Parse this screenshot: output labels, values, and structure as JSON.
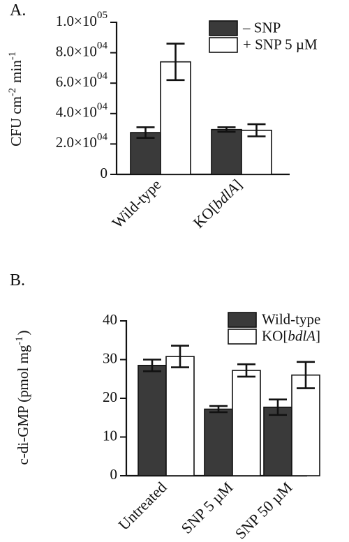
{
  "chart_data": [
    {
      "type": "bar",
      "panel_label": "A.",
      "ylabel": "CFU cm⁻² min⁻¹",
      "ylim": [
        0,
        100000
      ],
      "yticks": [
        {
          "value": 0,
          "label": "0"
        },
        {
          "value": 20000,
          "label": "2.0×10^04"
        },
        {
          "value": 40000,
          "label": "4.0×10^04"
        },
        {
          "value": 60000,
          "label": "6.0×10^04"
        },
        {
          "value": 80000,
          "label": "8.0×10^04"
        },
        {
          "value": 100000,
          "label": "1.0×10^05"
        }
      ],
      "categories": [
        "Wild-type",
        "KO[bdlA]"
      ],
      "series": [
        {
          "name": "– SNP",
          "color": "#3a3a3a",
          "values": [
            27500,
            29500
          ],
          "errors": [
            3500,
            1500
          ]
        },
        {
          "name": "+ SNP 5 µM",
          "color": "#ffffff",
          "values": [
            74000,
            29000
          ],
          "errors": [
            12000,
            4000
          ]
        }
      ],
      "legend": "top-right"
    },
    {
      "type": "bar",
      "panel_label": "B.",
      "ylabel": "c-di-GMP (pmol mg⁻¹)",
      "ylim": [
        0,
        40
      ],
      "yticks": [
        {
          "value": 0,
          "label": "0"
        },
        {
          "value": 10,
          "label": "10"
        },
        {
          "value": 20,
          "label": "20"
        },
        {
          "value": 30,
          "label": "30"
        },
        {
          "value": 40,
          "label": "40"
        }
      ],
      "categories": [
        "Untreated",
        "SNP 5 µM",
        "SNP 50 µM"
      ],
      "series": [
        {
          "name": "Wild-type",
          "color": "#3a3a3a",
          "values": [
            28.5,
            17.2,
            17.7
          ],
          "errors": [
            1.5,
            0.8,
            2.0
          ]
        },
        {
          "name": "KO[bdlA]",
          "color": "#ffffff",
          "values": [
            30.8,
            27.2,
            26.0
          ],
          "errors": [
            2.8,
            1.6,
            3.4
          ]
        }
      ],
      "legend": "top-right"
    }
  ]
}
